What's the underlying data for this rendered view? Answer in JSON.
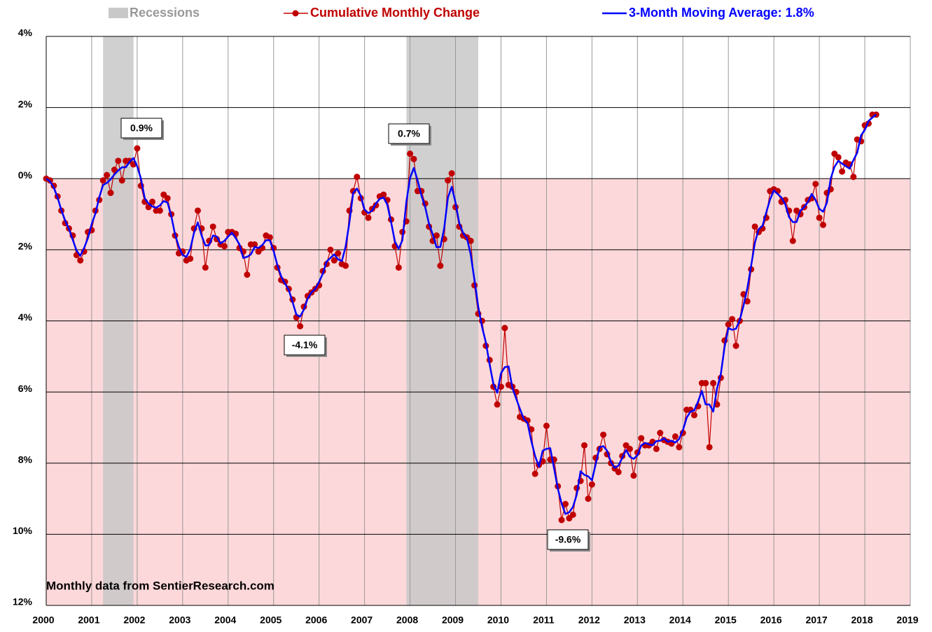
{
  "chart_data": {
    "type": "line",
    "legend": "top",
    "recession_label": "Recessions",
    "recession_color": "#c8c8c8",
    "recessions": [
      [
        2001.25,
        2001.92
      ],
      [
        2007.92,
        2009.5
      ]
    ],
    "negative_fill": "#fdd8da",
    "grid": true,
    "xlim": [
      2000,
      2019
    ],
    "xticks": [
      2000,
      2001,
      2002,
      2003,
      2004,
      2005,
      2006,
      2007,
      2008,
      2009,
      2010,
      2011,
      2012,
      2013,
      2014,
      2015,
      2016,
      2017,
      2018,
      2019
    ],
    "ylim": [
      -12,
      4
    ],
    "yticks": [
      {
        "value": 4,
        "label": "4%"
      },
      {
        "value": 2,
        "label": "2%"
      },
      {
        "value": 0,
        "label": "0%"
      },
      {
        "value": -2,
        "label": "2%"
      },
      {
        "value": -4,
        "label": "4%"
      },
      {
        "value": -6,
        "label": "6%"
      },
      {
        "value": -8,
        "label": "8%"
      },
      {
        "value": -10,
        "label": "10%"
      },
      {
        "value": -12,
        "label": "12%"
      }
    ],
    "annotations": [
      "0.9%",
      "0.7%",
      "-4.1%",
      "-9.6%"
    ],
    "source": "Monthly data from SentierResearch.com",
    "x": [
      2000,
      2000.083,
      2000.167,
      2000.25,
      2000.333,
      2000.417,
      2000.5,
      2000.583,
      2000.667,
      2000.75,
      2000.833,
      2000.917,
      2001,
      2001.083,
      2001.167,
      2001.25,
      2001.333,
      2001.417,
      2001.5,
      2001.583,
      2001.667,
      2001.75,
      2001.833,
      2001.917,
      2002,
      2002.083,
      2002.167,
      2002.25,
      2002.333,
      2002.417,
      2002.5,
      2002.583,
      2002.667,
      2002.75,
      2002.833,
      2002.917,
      2003,
      2003.083,
      2003.167,
      2003.25,
      2003.333,
      2003.417,
      2003.5,
      2003.583,
      2003.667,
      2003.75,
      2003.833,
      2003.917,
      2004,
      2004.083,
      2004.167,
      2004.25,
      2004.333,
      2004.417,
      2004.5,
      2004.583,
      2004.667,
      2004.75,
      2004.833,
      2004.917,
      2005,
      2005.083,
      2005.167,
      2005.25,
      2005.333,
      2005.417,
      2005.5,
      2005.583,
      2005.667,
      2005.75,
      2005.833,
      2005.917,
      2006,
      2006.083,
      2006.167,
      2006.25,
      2006.333,
      2006.417,
      2006.5,
      2006.583,
      2006.667,
      2006.75,
      2006.833,
      2006.917,
      2007,
      2007.083,
      2007.167,
      2007.25,
      2007.333,
      2007.417,
      2007.5,
      2007.583,
      2007.667,
      2007.75,
      2007.833,
      2007.917,
      2008,
      2008.083,
      2008.167,
      2008.25,
      2008.333,
      2008.417,
      2008.5,
      2008.583,
      2008.667,
      2008.75,
      2008.833,
      2008.917,
      2009,
      2009.083,
      2009.167,
      2009.25,
      2009.333,
      2009.417,
      2009.5,
      2009.583,
      2009.667,
      2009.75,
      2009.833,
      2009.917,
      2010,
      2010.083,
      2010.167,
      2010.25,
      2010.333,
      2010.417,
      2010.5,
      2010.583,
      2010.667,
      2010.75,
      2010.833,
      2010.917,
      2011,
      2011.083,
      2011.167,
      2011.25,
      2011.333,
      2011.417,
      2011.5,
      2011.583,
      2011.667,
      2011.75,
      2011.833,
      2011.917,
      2012,
      2012.083,
      2012.167,
      2012.25,
      2012.333,
      2012.417,
      2012.5,
      2012.583,
      2012.667,
      2012.75,
      2012.833,
      2012.917,
      2013,
      2013.083,
      2013.167,
      2013.25,
      2013.333,
      2013.417,
      2013.5,
      2013.583,
      2013.667,
      2013.75,
      2013.833,
      2013.917,
      2014,
      2014.083,
      2014.167,
      2014.25,
      2014.333,
      2014.417,
      2014.5,
      2014.583,
      2014.667,
      2014.75,
      2014.833,
      2014.917,
      2015,
      2015.083,
      2015.167,
      2015.25,
      2015.333,
      2015.417,
      2015.5,
      2015.583,
      2015.667,
      2015.75,
      2015.833,
      2015.917,
      2016,
      2016.083,
      2016.167,
      2016.25,
      2016.333,
      2016.417,
      2016.5,
      2016.583,
      2016.667,
      2016.75,
      2016.833,
      2016.917,
      2017,
      2017.083,
      2017.167,
      2017.25,
      2017.333,
      2017.417,
      2017.5,
      2017.583,
      2017.667,
      2017.75,
      2017.833,
      2017.917,
      2018,
      2018.083,
      2018.167,
      2018.25
    ],
    "series": [
      {
        "name": "Cumulative Monthly Change",
        "color": "#c00000",
        "markers": true,
        "values": [
          0,
          -0.05,
          -0.2,
          -0.5,
          -0.9,
          -1.25,
          -1.4,
          -1.6,
          -2.15,
          -2.3,
          -2.05,
          -1.5,
          -1.45,
          -0.9,
          -0.6,
          -0.05,
          0.1,
          -0.4,
          0.25,
          0.5,
          -0.05,
          0.5,
          0.5,
          0.4,
          0.85,
          -0.2,
          -0.65,
          -0.8,
          -0.65,
          -0.9,
          -0.9,
          -0.45,
          -0.55,
          -1.0,
          -1.6,
          -2.1,
          -2.05,
          -2.3,
          -2.25,
          -1.4,
          -0.9,
          -1.4,
          -2.5,
          -1.75,
          -1.35,
          -1.7,
          -1.85,
          -1.9,
          -1.5,
          -1.5,
          -1.55,
          -1.95,
          -2.05,
          -2.7,
          -1.85,
          -1.85,
          -2.05,
          -1.95,
          -1.6,
          -1.65,
          -1.95,
          -2.5,
          -2.85,
          -2.9,
          -3.1,
          -3.4,
          -3.9,
          -4.15,
          -3.6,
          -3.3,
          -3.2,
          -3.1,
          -3.0,
          -2.6,
          -2.4,
          -2.0,
          -2.3,
          -2.1,
          -2.4,
          -2.45,
          -0.9,
          -0.35,
          0.05,
          -0.55,
          -0.95,
          -1.1,
          -0.85,
          -0.75,
          -0.5,
          -0.45,
          -0.6,
          -1.15,
          -1.9,
          -2.5,
          -1.5,
          -1.2,
          0.7,
          0.55,
          -0.35,
          -0.35,
          -0.7,
          -1.35,
          -1.75,
          -1.6,
          -2.45,
          -1.7,
          -0.05,
          0.15,
          -0.8,
          -1.35,
          -1.6,
          -1.65,
          -1.75,
          -3.0,
          -3.8,
          -4.0,
          -4.7,
          -5.1,
          -5.85,
          -6.35,
          -5.85,
          -4.2,
          -5.8,
          -5.85,
          -6.0,
          -6.7,
          -6.75,
          -6.8,
          -7.05,
          -8.3,
          -8.05,
          -7.95,
          -6.95,
          -7.9,
          -7.9,
          -8.65,
          -9.6,
          -9.15,
          -9.55,
          -9.45,
          -8.7,
          -8.5,
          -7.5,
          -9.0,
          -8.6,
          -7.85,
          -7.6,
          -7.2,
          -7.75,
          -8.0,
          -8.15,
          -8.25,
          -7.8,
          -7.5,
          -7.6,
          -8.35,
          -7.7,
          -7.3,
          -7.5,
          -7.5,
          -7.4,
          -7.6,
          -7.15,
          -7.35,
          -7.4,
          -7.45,
          -7.25,
          -7.55,
          -7.15,
          -6.5,
          -6.5,
          -6.65,
          -6.4,
          -5.75,
          -5.75,
          -7.55,
          -5.75,
          -6.35,
          -5.6,
          -4.55,
          -4.1,
          -3.95,
          -4.7,
          -4.0,
          -3.25,
          -3.45,
          -2.55,
          -1.35,
          -1.5,
          -1.4,
          -1.1,
          -0.35,
          -0.3,
          -0.35,
          -0.65,
          -0.6,
          -0.9,
          -1.75,
          -0.9,
          -1.0,
          -0.8,
          -0.6,
          -0.55,
          -0.15,
          -1.1,
          -1.3,
          -0.4,
          -0.3,
          0.7,
          0.6,
          0.2,
          0.45,
          0.4,
          0.05,
          1.1,
          1.05,
          1.5,
          1.55,
          1.8,
          1.8
        ]
      },
      {
        "name": "3-Month Moving Average: 1.8%",
        "color": "#0000ff",
        "markers": false,
        "values": [
          0,
          -0.08,
          -0.25,
          -0.53,
          -0.88,
          -1.18,
          -1.42,
          -1.72,
          -2.02,
          -2.17,
          -1.95,
          -1.67,
          -1.28,
          -0.98,
          -0.52,
          -0.18,
          -0.12,
          -0.02,
          0.12,
          0.23,
          0.32,
          0.32,
          0.47,
          0.58,
          0.35,
          0.0,
          -0.55,
          -0.7,
          -0.78,
          -0.82,
          -0.75,
          -0.63,
          -0.67,
          -1.05,
          -1.57,
          -1.92,
          -2.15,
          -2.2,
          -1.98,
          -1.52,
          -1.23,
          -1.6,
          -1.88,
          -1.87,
          -1.6,
          -1.63,
          -1.82,
          -1.75,
          -1.63,
          -1.52,
          -1.67,
          -1.85,
          -2.23,
          -2.2,
          -2.13,
          -1.92,
          -1.95,
          -1.87,
          -1.73,
          -1.73,
          -2.03,
          -2.43,
          -2.75,
          -2.95,
          -3.13,
          -3.47,
          -3.82,
          -3.88,
          -3.68,
          -3.37,
          -3.2,
          -3.1,
          -2.9,
          -2.67,
          -2.33,
          -2.23,
          -2.13,
          -2.27,
          -2.32,
          -1.92,
          -1.23,
          -0.4,
          -0.28,
          -0.48,
          -0.87,
          -0.97,
          -0.9,
          -0.7,
          -0.57,
          -0.53,
          -0.73,
          -1.22,
          -1.77,
          -1.97,
          -1.73,
          -0.67,
          0.02,
          0.3,
          -0.05,
          -0.47,
          -0.8,
          -1.27,
          -1.57,
          -1.93,
          -1.92,
          -1.4,
          -0.53,
          -0.23,
          -0.67,
          -1.25,
          -1.53,
          -1.67,
          -2.13,
          -2.85,
          -3.6,
          -4.17,
          -4.6,
          -5.22,
          -5.77,
          -6.02,
          -5.47,
          -5.3,
          -5.28,
          -5.88,
          -6.18,
          -6.48,
          -6.75,
          -6.87,
          -7.38,
          -7.8,
          -8.1,
          -7.65,
          -7.6,
          -7.58,
          -8.15,
          -8.72,
          -9.13,
          -9.43,
          -9.38,
          -9.23,
          -8.88,
          -8.23,
          -8.33,
          -8.37,
          -8.48,
          -8.02,
          -7.55,
          -7.52,
          -7.65,
          -7.97,
          -8.13,
          -8.07,
          -7.85,
          -7.63,
          -7.82,
          -7.88,
          -7.78,
          -7.5,
          -7.43,
          -7.47,
          -7.5,
          -7.38,
          -7.37,
          -7.3,
          -7.4,
          -7.37,
          -7.42,
          -7.32,
          -7.07,
          -6.72,
          -6.55,
          -6.52,
          -6.27,
          -5.97,
          -6.35,
          -6.35,
          -6.55,
          -5.9,
          -5.5,
          -4.73,
          -4.2,
          -4.25,
          -4.22,
          -3.98,
          -3.57,
          -3.08,
          -2.45,
          -1.8,
          -1.42,
          -1.33,
          -0.95,
          -0.58,
          -0.33,
          -0.43,
          -0.53,
          -0.72,
          -1.08,
          -1.22,
          -1.22,
          -0.9,
          -0.8,
          -0.65,
          -0.43,
          -0.6,
          -0.85,
          -0.93,
          -0.67,
          0.0,
          0.33,
          0.5,
          0.42,
          0.35,
          0.28,
          0.52,
          0.73,
          1.22,
          1.37,
          1.62,
          1.72,
          1.8
        ]
      }
    ]
  }
}
